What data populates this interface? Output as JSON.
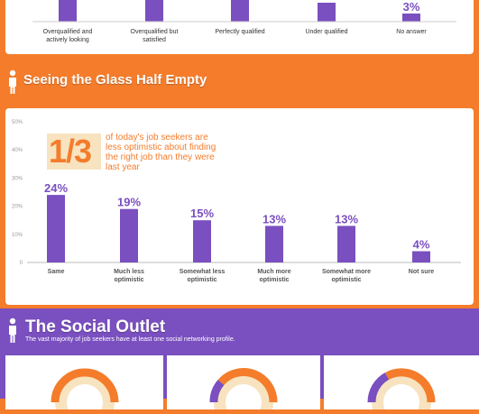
{
  "top_chart": {
    "categories": [
      "Overqualified and actively looking",
      "Overqualified but satisfied",
      "Perfectly qualified",
      "Under qualified",
      "No answer"
    ],
    "category_lines": [
      [
        "Overqualified and",
        "actively looking"
      ],
      [
        "Overqualified but",
        "satisfied"
      ],
      [
        "Perfectly qualified"
      ],
      [
        "Under qualified"
      ],
      [
        "No answer"
      ]
    ],
    "visible_value_label": "3%",
    "label_index": 4
  },
  "glass_section": {
    "title": "Seeing the Glass Half Empty"
  },
  "callout": {
    "fraction": "1/3",
    "text": "of today's job seekers are less optimistic about finding the right job than they were last year"
  },
  "chart_data": [
    {
      "type": "bar",
      "title": "",
      "categories": [
        "Overqualified and actively looking",
        "Overqualified but satisfied",
        "Perfectly qualified",
        "Under qualified",
        "No answer"
      ],
      "values": [
        null,
        null,
        null,
        null,
        3
      ],
      "xlabel": "",
      "ylabel": ""
    },
    {
      "type": "bar",
      "title": "Seeing the Glass Half Empty",
      "categories": [
        "Same",
        "Much less optimistic",
        "Somewhat less optimistic",
        "Much more optimistic",
        "Somewhat more optimistic",
        "Not sure"
      ],
      "category_lines": [
        [
          "Same"
        ],
        [
          "Much less",
          "optimistic"
        ],
        [
          "Somewhat less",
          "optimistic"
        ],
        [
          "Much more",
          "optimistic"
        ],
        [
          "Somewhat more",
          "optimistic"
        ],
        [
          "Not sure"
        ]
      ],
      "values": [
        24,
        19,
        15,
        13,
        13,
        4
      ],
      "value_labels": [
        "24%",
        "19%",
        "15%",
        "13%",
        "13%",
        "4%"
      ],
      "y_ticks": [
        "0",
        "10%",
        "20%",
        "30%",
        "40%",
        "50%"
      ],
      "ylim": [
        0,
        50
      ],
      "xlabel": "",
      "ylabel": "",
      "grid": false,
      "color": "#7a4fbf"
    }
  ],
  "social_section": {
    "title": "The Social Outlet",
    "subtitle": "The vast majority of job seekers have at least one social networking profile."
  },
  "colors": {
    "orange": "#f47c2b",
    "purple": "#7a4fbf",
    "cream": "#f7e3bf"
  }
}
